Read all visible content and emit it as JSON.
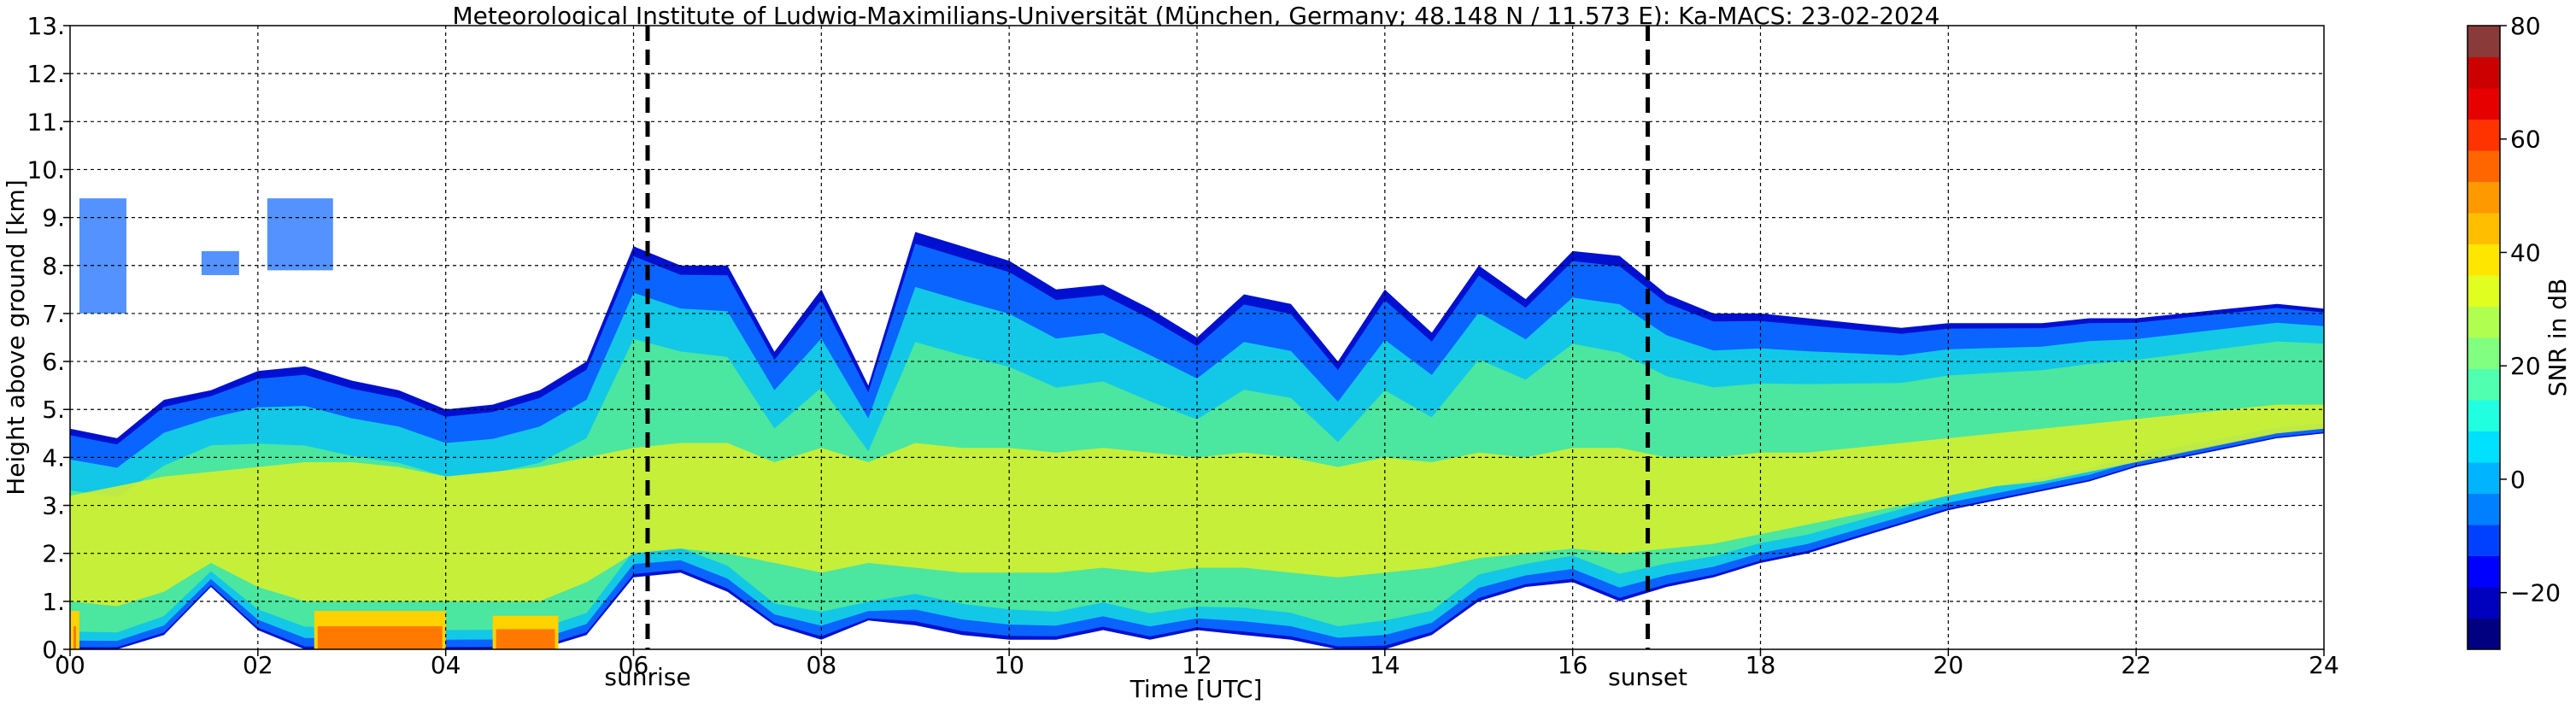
{
  "chart_data": {
    "type": "heatmap",
    "title": "Meteorological Institute of Ludwig-Maximilians-Universität (München, Germany; 48.148 N / 11.573 E):    Ka-MACS: 23-02-2024",
    "xlabel": "Time [UTC]",
    "ylabel": "Height above ground [km]",
    "xlim": [
      0,
      24
    ],
    "ylim": [
      0,
      13
    ],
    "x_ticks": [
      0,
      2,
      4,
      6,
      8,
      10,
      12,
      14,
      16,
      18,
      20,
      22,
      24
    ],
    "x_tick_labels": [
      "00",
      "02",
      "04",
      "06",
      "08",
      "10",
      "12",
      "14",
      "16",
      "18",
      "20",
      "22",
      "24"
    ],
    "y_ticks": [
      0,
      1,
      2,
      3,
      4,
      5,
      6,
      7,
      8,
      9,
      10,
      11,
      12,
      13
    ],
    "y_tick_labels": [
      "0.",
      "1.",
      "2.",
      "3.",
      "4.",
      "5.",
      "6.",
      "7.",
      "8.",
      "9.",
      "10.",
      "11.",
      "12.",
      "13."
    ],
    "grid": true,
    "colorbar": {
      "label": "SNR in dB",
      "vmin": -30,
      "vmax": 80,
      "ticks": [
        -20,
        0,
        20,
        40,
        60,
        80
      ],
      "tick_labels": [
        "−20",
        "0",
        "20",
        "40",
        "60",
        "80"
      ]
    },
    "annotations": [
      {
        "text": "sunrise",
        "x": 6.15
      },
      {
        "text": "sunset",
        "x": 16.8
      }
    ],
    "echo_profile": {
      "time_utc": [
        0.0,
        0.5,
        1.0,
        1.5,
        2.0,
        2.5,
        3.0,
        3.5,
        4.0,
        4.5,
        5.0,
        5.5,
        6.0,
        6.5,
        7.0,
        7.5,
        8.0,
        8.5,
        9.0,
        9.5,
        10.0,
        10.5,
        11.0,
        11.5,
        12.0,
        12.5,
        13.0,
        13.5,
        14.0,
        14.5,
        15.0,
        15.5,
        16.0,
        16.5,
        17.0,
        17.5,
        18.0,
        18.5,
        19.0,
        19.5,
        20.0,
        20.5,
        21.0,
        21.5,
        22.0,
        22.5,
        23.0,
        23.5,
        24.0
      ],
      "top_km": [
        4.6,
        4.4,
        5.2,
        5.4,
        5.8,
        5.9,
        5.6,
        5.4,
        5.0,
        5.1,
        5.4,
        6.0,
        8.4,
        8.0,
        8.0,
        6.2,
        7.5,
        5.5,
        8.7,
        8.4,
        8.1,
        7.5,
        7.6,
        7.1,
        6.5,
        7.4,
        7.2,
        6.0,
        7.5,
        6.6,
        8.0,
        7.3,
        8.3,
        8.2,
        7.4,
        7.0,
        7.0,
        6.9,
        6.8,
        6.7,
        6.8,
        6.8,
        6.8,
        6.9,
        6.9,
        7.0,
        7.1,
        7.2,
        7.1
      ],
      "base_km": [
        0.0,
        0.0,
        0.3,
        1.3,
        0.4,
        0.0,
        0.0,
        0.0,
        0.0,
        0.0,
        0.0,
        0.3,
        1.5,
        1.6,
        1.2,
        0.5,
        0.2,
        0.6,
        0.5,
        0.3,
        0.2,
        0.2,
        0.4,
        0.2,
        0.4,
        0.3,
        0.2,
        0.0,
        0.0,
        0.3,
        1.0,
        1.3,
        1.4,
        1.0,
        1.3,
        1.5,
        1.8,
        2.0,
        2.3,
        2.6,
        2.9,
        3.1,
        3.3,
        3.5,
        3.8,
        4.0,
        4.2,
        4.4,
        4.5
      ],
      "core_top_km": [
        3.2,
        3.4,
        3.6,
        3.7,
        3.8,
        3.9,
        3.9,
        3.8,
        3.6,
        3.7,
        3.8,
        4.0,
        4.2,
        4.3,
        4.3,
        3.9,
        4.2,
        3.9,
        4.3,
        4.2,
        4.2,
        4.1,
        4.2,
        4.1,
        4.0,
        4.1,
        4.0,
        3.8,
        4.0,
        3.9,
        4.1,
        4.0,
        4.2,
        4.2,
        4.0,
        4.0,
        4.1,
        4.1,
        4.2,
        4.3,
        4.4,
        4.5,
        4.6,
        4.7,
        4.8,
        4.9,
        5.0,
        5.1,
        5.1
      ],
      "core_base_km": [
        1.0,
        0.9,
        1.2,
        1.8,
        1.3,
        1.0,
        1.0,
        1.0,
        1.0,
        1.0,
        1.0,
        1.4,
        2.0,
        2.1,
        2.0,
        1.8,
        1.6,
        1.8,
        1.7,
        1.6,
        1.6,
        1.6,
        1.7,
        1.6,
        1.7,
        1.7,
        1.6,
        1.5,
        1.6,
        1.7,
        1.9,
        2.0,
        2.1,
        2.0,
        2.1,
        2.2,
        2.4,
        2.6,
        2.8,
        3.0,
        3.2,
        3.4,
        3.5,
        3.7,
        3.9,
        4.1,
        4.3,
        4.5,
        4.6
      ]
    },
    "high_echo_patches": [
      {
        "t0": 0.0,
        "t1": 0.1,
        "h0": 0.0,
        "h1": 0.8
      },
      {
        "t0": 2.6,
        "t1": 4.0,
        "h0": 0.0,
        "h1": 0.8
      },
      {
        "t0": 4.5,
        "t1": 5.2,
        "h0": 0.0,
        "h1": 0.7
      }
    ],
    "cirrus_patches": [
      {
        "t0": 0.1,
        "t1": 0.6,
        "h0": 7.0,
        "h1": 9.4
      },
      {
        "t0": 1.4,
        "t1": 1.8,
        "h0": 7.8,
        "h1": 8.3
      },
      {
        "t0": 2.1,
        "t1": 2.8,
        "h0": 7.9,
        "h1": 9.4
      }
    ],
    "colors": {
      "top_edge": "#0010d0",
      "outer": "#0a64ff",
      "middle": "#12c8e6",
      "inner": "#4be6a0",
      "core": "#dcf028",
      "strong": "#ffd200",
      "very_strong": "#ff6a00",
      "max": "#e61e00",
      "colorbar_steps": [
        "#000080",
        "#0000bf",
        "#0000ff",
        "#0040ff",
        "#0080ff",
        "#00b4ff",
        "#00e0ff",
        "#20ffe0",
        "#50ffb0",
        "#80ff80",
        "#b0ff50",
        "#e0ff20",
        "#ffe600",
        "#ffbf00",
        "#ff9900",
        "#ff6600",
        "#ff3300",
        "#e60000",
        "#cc0000",
        "#8b3a3a"
      ]
    }
  }
}
